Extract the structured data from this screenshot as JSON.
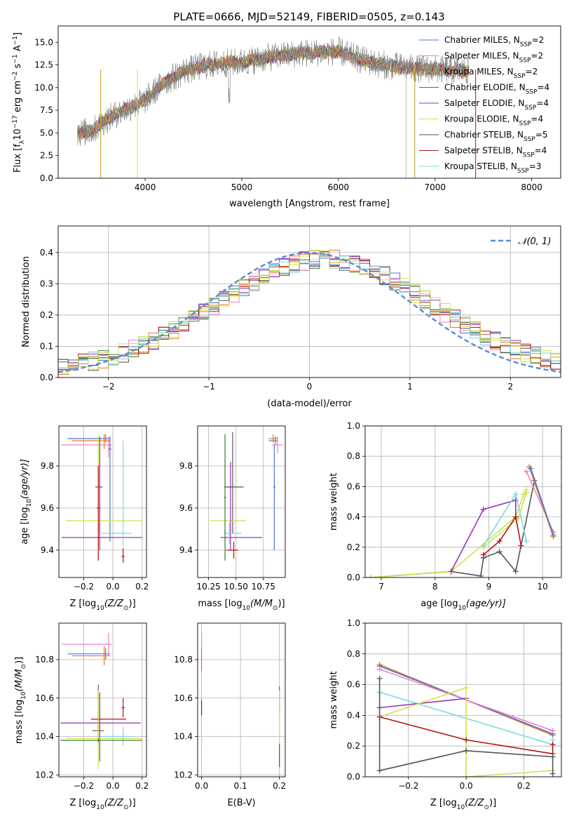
{
  "figure": {
    "title": "PLATE=0666, MJD=52149, FIBERID=0505, z=0.143"
  },
  "chart_data": [
    {
      "type": "line",
      "id": "spectrum",
      "xlabel": "wavelength [Angstrom, rest frame]",
      "ylabel": "Flux [f",
      "ylabel_sub": "λ",
      "ylabel_rest": "10",
      "ylabel_exp1": "−17",
      "ylabel_mid": " erg cm",
      "ylabel_exp2": "−2",
      "ylabel_mid2": " s",
      "ylabel_exp3": "−1",
      "ylabel_end": " A",
      "ylabel_exp4": "−1",
      "ylabel_close": "]",
      "xlim": [
        3100,
        8300
      ],
      "ylim": [
        0,
        16.8
      ],
      "xticks": [
        4000,
        5000,
        6000,
        7000,
        8000
      ],
      "yticks": [
        0.0,
        2.5,
        5.0,
        7.5,
        10.0,
        12.5,
        15.0
      ],
      "grid": false,
      "legend_placement": "top-right",
      "continuum": {
        "x": [
          3300,
          3450,
          3600,
          3800,
          4000,
          4200,
          4400,
          4600,
          4800,
          5000,
          5200,
          5400,
          5600,
          5800,
          6000,
          6200,
          6400,
          6600,
          6800,
          7000,
          7200,
          7350
        ],
        "y": [
          5.0,
          5.2,
          6.5,
          7.6,
          8.6,
          10.6,
          11.8,
          12.4,
          12.7,
          12.8,
          13.2,
          13.5,
          13.8,
          13.9,
          14.0,
          13.2,
          12.6,
          12.3,
          12.1,
          12.0,
          11.9,
          11.8
        ]
      },
      "series": [
        {
          "name": "Chabrier MILES, N",
          "sub": "SSP",
          "suffix": "=2",
          "color": "#4878d0"
        },
        {
          "name": "Salpeter MILES, N",
          "sub": "SSP",
          "suffix": "=2",
          "color": "#ee82c0"
        },
        {
          "name": "Kroupa MILES, N",
          "sub": "SSP",
          "suffix": "=2",
          "color": "#c49a00"
        },
        {
          "name": "Chabrier ELODIE, N",
          "sub": "SSP",
          "suffix": "=4",
          "color": "#3a7d3a"
        },
        {
          "name": "Salpeter ELODIE, N",
          "sub": "SSP",
          "suffix": "=4",
          "color": "#9b30c0"
        },
        {
          "name": "Kroupa ELODIE, N",
          "sub": "SSP",
          "suffix": "=4",
          "color": "#d4e04a"
        },
        {
          "name": "Chabrier STELIB, N",
          "sub": "SSP",
          "suffix": "=5",
          "color": "#555555"
        },
        {
          "name": "Salpeter STELIB, N",
          "sub": "SSP",
          "suffix": "=4",
          "color": "#b01515"
        },
        {
          "name": "Kroupa STELIB, N",
          "sub": "SSP",
          "suffix": "=3",
          "color": "#7dd8e0"
        }
      ],
      "extra_colors": {
        "data": "#808080",
        "orange": "#e87d2a",
        "gray_line": "#bbbbbb"
      }
    },
    {
      "type": "line",
      "id": "residuals",
      "xlabel": "(data-model)/error",
      "ylabel": "Normed distribution",
      "xlim": [
        -2.5,
        2.5
      ],
      "ylim": [
        0,
        0.485
      ],
      "xticks": [
        -2,
        -1,
        0,
        1,
        2
      ],
      "xtick_labels": [
        "−2",
        "−1",
        "0",
        "1",
        "2"
      ],
      "yticks": [
        0.0,
        0.1,
        0.2,
        0.3,
        0.4
      ],
      "grid": true,
      "legend_placement": "top-right",
      "legend": [
        {
          "label": "𝒩(0, 1)",
          "color": "#5a8ad8",
          "style": "dashed"
        }
      ],
      "histogram_bin_width": 0.1,
      "histogram_colors": [
        "#4878d0",
        "#ee82c0",
        "#e87d2a",
        "#3a7d3a",
        "#9b30c0",
        "#d4e04a",
        "#555555",
        "#b01515",
        "#7dd8e0",
        "#c8e060"
      ]
    },
    {
      "type": "scatter",
      "id": "age-vs-Z",
      "xlabel": "Z [log",
      "xlabel_sub": "10",
      "xlabel_rest": "(Z/Z",
      "xlabel_sun": "⊙",
      "xlabel_close": ")]",
      "ylabel": "age  [log",
      "ylabel_sub": "10",
      "ylabel_rest": "(age/yr)]",
      "xlim": [
        -0.37,
        0.23
      ],
      "ylim": [
        9.27,
        9.99
      ],
      "xticks": [
        -0.2,
        0.0,
        0.2
      ],
      "xtick_labels": [
        "−0.2",
        "0.0",
        "0.2"
      ],
      "yticks": [
        9.4,
        9.6,
        9.8
      ],
      "grid": true,
      "crosses": [
        {
          "x": -0.05,
          "xerr": [
            0.26,
            0.03
          ],
          "y": 9.93,
          "yerr": [
            0.02,
            0.02
          ],
          "color": "#4878d0"
        },
        {
          "x": -0.03,
          "xerr": [
            0.32,
            0.02
          ],
          "y": 9.9,
          "yerr": [
            0.06,
            0.04
          ],
          "color": "#ee82c0"
        },
        {
          "x": -0.06,
          "xerr": [
            0.22,
            0.04
          ],
          "y": 9.92,
          "yerr": [
            0.04,
            0.03
          ],
          "color": "#e87d2a"
        },
        {
          "x": -0.09,
          "xerr": [
            0.03,
            0.02
          ],
          "y": 9.7,
          "yerr": [
            0.22,
            0.24
          ],
          "color": "#555555"
        },
        {
          "x": -0.02,
          "xerr": [
            0.01,
            0.01
          ],
          "y": 9.88,
          "yerr": [
            0.44,
            0.06
          ],
          "color": "#4878d0"
        },
        {
          "x": -0.1,
          "xerr": [
            0.22,
            0.3
          ],
          "y": 9.54,
          "yerr": [
            0.18,
            0.4
          ],
          "color": "#d4e04a"
        },
        {
          "x": -0.09,
          "xerr": [
            0.26,
            0.29
          ],
          "y": 9.46,
          "yerr": [
            0.06,
            0.36
          ],
          "color": "#9b30c0"
        },
        {
          "x": 0.07,
          "xerr": [
            0.15,
            0.06
          ],
          "y": 9.48,
          "yerr": [
            0.06,
            0.44
          ],
          "color": "#7dd8e0"
        },
        {
          "x": -0.1,
          "xerr": [
            0.01,
            0.01
          ],
          "y": 9.6,
          "yerr": [
            0.25,
            0.2
          ],
          "color": "#b01515"
        },
        {
          "x": 0.07,
          "xerr": [
            0.01,
            0.01
          ],
          "y": 9.37,
          "yerr": [
            0.03,
            0.04
          ],
          "color": "#b01515"
        }
      ]
    },
    {
      "type": "scatter",
      "id": "age-vs-mass",
      "xlabel": "mass [log",
      "xlabel_sub": "10",
      "xlabel_rest": "(M/M",
      "xlabel_sun": "⊙",
      "xlabel_close": ")]",
      "xlim": [
        10.15,
        10.95
      ],
      "ylim": [
        9.27,
        9.99
      ],
      "xticks": [
        10.25,
        10.5,
        10.75
      ],
      "xtick_labels": [
        "10.25",
        "10.50",
        "10.75"
      ],
      "yticks": [
        9.4,
        9.6,
        9.8
      ],
      "grid": true,
      "crosses": [
        {
          "x": 10.86,
          "xerr": [
            0.06,
            0.02
          ],
          "y": 9.92,
          "yerr": [
            0.02,
            0.02
          ],
          "color": "#4878d0"
        },
        {
          "x": 10.88,
          "xerr": [
            0.05,
            0.05
          ],
          "y": 9.9,
          "yerr": [
            0.04,
            0.04
          ],
          "color": "#ee82c0"
        },
        {
          "x": 10.84,
          "xerr": [
            0.04,
            0.04
          ],
          "y": 9.93,
          "yerr": [
            0.02,
            0.02
          ],
          "color": "#e87d2a"
        },
        {
          "x": 10.85,
          "xerr": [
            0.01,
            0.01
          ],
          "y": 9.7,
          "yerr": [
            0.3,
            0.2
          ],
          "color": "#4878d0"
        },
        {
          "x": 10.47,
          "xerr": [
            0.08,
            0.1
          ],
          "y": 9.7,
          "yerr": [
            0.22,
            0.26
          ],
          "color": "#555555"
        },
        {
          "x": 10.4,
          "xerr": [
            0.14,
            0.19
          ],
          "y": 9.54,
          "yerr": [
            0.18,
            0.4
          ],
          "color": "#d4e04a"
        },
        {
          "x": 10.45,
          "xerr": [
            0.09,
            0.29
          ],
          "y": 9.46,
          "yerr": [
            0.06,
            0.36
          ],
          "color": "#9b30c0"
        },
        {
          "x": 10.44,
          "xerr": [
            0.05,
            0.11
          ],
          "y": 9.48,
          "yerr": [
            0.05,
            0.05
          ],
          "color": "#7dd8e0"
        },
        {
          "x": 10.48,
          "xerr": [
            0.07,
            0.04
          ],
          "y": 9.4,
          "yerr": [
            0.04,
            0.04
          ],
          "color": "#b01515"
        },
        {
          "x": 10.4,
          "xerr": [
            0.01,
            0.01
          ],
          "y": 9.65,
          "yerr": [
            0.3,
            0.3
          ],
          "color": "#3a7d3a"
        }
      ]
    },
    {
      "type": "line",
      "id": "massweight-vs-age",
      "xlabel": "age  [log",
      "xlabel_sub": "10",
      "xlabel_rest": "(age/yr)]",
      "ylabel": "mass weight",
      "xlim": [
        6.7,
        10.35
      ],
      "ylim": [
        0,
        1.0
      ],
      "xticks": [
        7,
        8,
        9,
        10
      ],
      "yticks": [
        0.0,
        0.2,
        0.4,
        0.6,
        0.8,
        1.0
      ],
      "grid": true,
      "series": [
        {
          "color": "#555555",
          "x": [
            6.8,
            8.3,
            8.85,
            8.9,
            9.2,
            9.5,
            9.85
          ],
          "y": [
            0.0,
            0.04,
            0.01,
            0.13,
            0.17,
            0.04,
            0.64
          ]
        },
        {
          "color": "#d4e04a",
          "x": [
            6.8,
            8.3,
            9.5,
            9.65,
            9.7
          ],
          "y": [
            0.0,
            0.04,
            0.4,
            0.55,
            0.58
          ]
        },
        {
          "color": "#c8e060",
          "x": [
            8.9,
            9.55,
            9.7
          ],
          "y": [
            0.2,
            0.39,
            0.56
          ]
        },
        {
          "color": "#9b30c0",
          "x": [
            8.3,
            8.9,
            9.5,
            9.5
          ],
          "y": [
            0.04,
            0.45,
            0.51,
            0.4
          ]
        },
        {
          "color": "#b01515",
          "x": [
            8.9,
            9.2,
            9.5,
            9.6
          ],
          "y": [
            0.15,
            0.24,
            0.4,
            0.21
          ]
        },
        {
          "color": "#7dd8e0",
          "x": [
            8.9,
            9.5,
            9.7
          ],
          "y": [
            0.21,
            0.55,
            0.24
          ]
        },
        {
          "color": "#ee82c0",
          "x": [
            9.7,
            10.2
          ],
          "y": [
            0.7,
            0.3
          ]
        },
        {
          "color": "#e87d2a",
          "x": [
            9.75,
            10.2
          ],
          "y": [
            0.73,
            0.27
          ]
        },
        {
          "color": "#4878d0",
          "x": [
            9.78,
            10.2
          ],
          "y": [
            0.72,
            0.28
          ]
        }
      ]
    },
    {
      "type": "scatter",
      "id": "mass-vs-Z",
      "xlabel": "Z [log",
      "xlabel_sub": "10",
      "xlabel_rest": "(Z/Z",
      "xlabel_sun": "⊙",
      "xlabel_close": ")]",
      "ylabel": "mass [log",
      "ylabel_sub": "10",
      "ylabel_rest": "(M/M",
      "ylabel_sun": "⊙",
      "ylabel_close": ")]",
      "xlim": [
        -0.37,
        0.23
      ],
      "ylim": [
        10.19,
        10.99
      ],
      "xticks": [
        -0.2,
        0.0,
        0.2
      ],
      "xtick_labels": [
        "−0.2",
        "0.0",
        "0.2"
      ],
      "yticks": [
        10.2,
        10.4,
        10.6,
        10.8
      ],
      "grid": true,
      "crosses": [
        {
          "x": -0.05,
          "xerr": [
            0.26,
            0.03
          ],
          "y": 10.83,
          "yerr": [
            0.03,
            0.03
          ],
          "color": "#4878d0"
        },
        {
          "x": -0.03,
          "xerr": [
            0.32,
            0.02
          ],
          "y": 10.88,
          "yerr": [
            0.06,
            0.06
          ],
          "color": "#ee82c0"
        },
        {
          "x": -0.06,
          "xerr": [
            0.22,
            0.04
          ],
          "y": 10.82,
          "yerr": [
            0.05,
            0.05
          ],
          "color": "#e87d2a"
        },
        {
          "x": -0.09,
          "xerr": [
            0.05,
            0.03
          ],
          "y": 10.43,
          "yerr": [
            0.16,
            0.2
          ],
          "color": "#555555"
        },
        {
          "x": -0.1,
          "xerr": [
            0.05,
            0.19
          ],
          "y": 10.49,
          "yerr": [
            0.12,
            0.03
          ],
          "color": "#b01515"
        },
        {
          "x": -0.1,
          "xerr": [
            0.26,
            0.29
          ],
          "y": 10.47,
          "yerr": [
            0.1,
            0.2
          ],
          "color": "#9b30c0"
        },
        {
          "x": -0.1,
          "xerr": [
            0.22,
            0.3
          ],
          "y": 10.39,
          "yerr": [
            0.16,
            0.25
          ],
          "color": "#d4e04a"
        },
        {
          "x": 0.07,
          "xerr": [
            0.15,
            0.06
          ],
          "y": 10.4,
          "yerr": [
            0.05,
            0.05
          ],
          "color": "#7dd8e0"
        },
        {
          "x": -0.1,
          "xerr": [
            0.26,
            0.3
          ],
          "y": 10.38,
          "yerr": [
            0.01,
            0.01
          ],
          "color": "#3a7d3a"
        },
        {
          "x": 0.07,
          "xerr": [
            0.01,
            0.01
          ],
          "y": 10.55,
          "yerr": [
            0.05,
            0.05
          ],
          "color": "#b01515"
        }
      ]
    },
    {
      "type": "scatter",
      "id": "mass-vs-ebv",
      "xlabel": "E(B-V)",
      "xlim": [
        -0.01,
        0.215
      ],
      "ylim": [
        10.19,
        10.99
      ],
      "xticks": [
        0.0,
        0.1,
        0.2
      ],
      "xtick_labels": [
        "0.0",
        "0.1",
        "0.2"
      ],
      "yticks": [
        10.2,
        10.4,
        10.6,
        10.8
      ],
      "grid": true,
      "crosses": [
        {
          "x": 0.0,
          "y": 10.84,
          "yerr": [
            0.1,
            0.1
          ],
          "color": "#ee82c0"
        },
        {
          "x": 0.0,
          "y": 10.8,
          "yerr": [
            0.06,
            0.06
          ],
          "color": "#e87d2a"
        },
        {
          "x": 0.0,
          "y": 10.5,
          "yerr": [
            0.16,
            0.1
          ],
          "color": "#7dd8e0"
        },
        {
          "x": 0.0,
          "y": 10.55,
          "yerr": [
            0.04,
            0.04
          ],
          "color": "#b01515"
        },
        {
          "x": 0.2,
          "y": 10.6,
          "yerr": [
            0.08,
            0.06
          ],
          "color": "#9b30c0"
        },
        {
          "x": 0.2,
          "y": 10.42,
          "yerr": [
            0.18,
            0.22
          ],
          "color": "#d4e04a"
        },
        {
          "x": 0.2,
          "y": 10.3,
          "yerr": [
            0.06,
            0.06
          ],
          "color": "#555555"
        }
      ]
    },
    {
      "type": "line",
      "id": "massweight-vs-Z",
      "xlabel": "Z [log",
      "xlabel_sub": "10",
      "xlabel_rest": "(Z/Z",
      "xlabel_sun": "⊙",
      "xlabel_close": ")]",
      "ylabel": "mass weight",
      "xlim": [
        -0.35,
        0.33
      ],
      "ylim": [
        0,
        1.0
      ],
      "xticks": [
        -0.2,
        0.0,
        0.2
      ],
      "xtick_labels": [
        "−0.2",
        "0.0",
        "0.2"
      ],
      "yticks": [
        0.0,
        0.2,
        0.4,
        0.6,
        0.8,
        1.0
      ],
      "grid": true,
      "series": [
        {
          "color": "#e87d2a",
          "x": [
            -0.3,
            0.3
          ],
          "y": [
            0.73,
            0.27
          ]
        },
        {
          "color": "#4878d0",
          "x": [
            -0.3,
            0.3
          ],
          "y": [
            0.72,
            0.28
          ]
        },
        {
          "color": "#ee82c0",
          "x": [
            -0.3,
            0.3
          ],
          "y": [
            0.7,
            0.3
          ]
        },
        {
          "color": "#7dd8e0",
          "x": [
            -0.3,
            0.3,
            0.3
          ],
          "y": [
            0.55,
            0.21,
            0.24
          ]
        },
        {
          "color": "#9b30c0",
          "x": [
            -0.3,
            0.0
          ],
          "y": [
            0.45,
            0.51
          ]
        },
        {
          "color": "#d4e04a",
          "x": [
            -0.3,
            0.0,
            0.0
          ],
          "y": [
            0.39,
            0.58,
            0.0
          ]
        },
        {
          "color": "#c8e060",
          "x": [
            0.0,
            0.3
          ],
          "y": [
            0.0,
            0.04
          ]
        },
        {
          "color": "#b01515",
          "x": [
            -0.3,
            0.0,
            0.3,
            0.3
          ],
          "y": [
            0.39,
            0.24,
            0.15,
            0.21
          ]
        },
        {
          "color": "#555555",
          "x": [
            -0.3,
            -0.3,
            0.0,
            0.3,
            0.3
          ],
          "y": [
            0.64,
            0.04,
            0.17,
            0.13,
            0.02
          ]
        }
      ]
    }
  ]
}
